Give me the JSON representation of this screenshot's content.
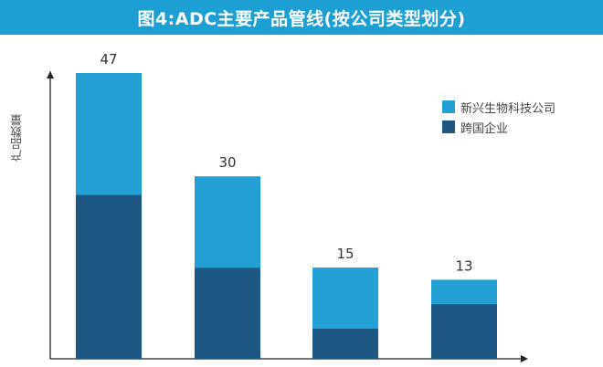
{
  "title": "图4:ADC主要产品管线(按公司类型划分)",
  "colors": {
    "title_bg": "#1d9fd3",
    "emerging": "#22a0d3",
    "multinational": "#1d5784",
    "axis": "#222222"
  },
  "chart_data": {
    "type": "bar",
    "stacked": true,
    "categories": [
      "",
      "",
      "",
      ""
    ],
    "series": [
      {
        "name": "跨国企业",
        "values": [
          27,
          15,
          5,
          9
        ]
      },
      {
        "name": "新兴生物科技公司",
        "values": [
          20,
          15,
          10,
          4
        ]
      }
    ],
    "totals": [
      47,
      30,
      15,
      13
    ],
    "ylabel": "产品数量",
    "ylim": [
      0,
      55
    ],
    "grid": false,
    "legend_position": "top-right"
  }
}
